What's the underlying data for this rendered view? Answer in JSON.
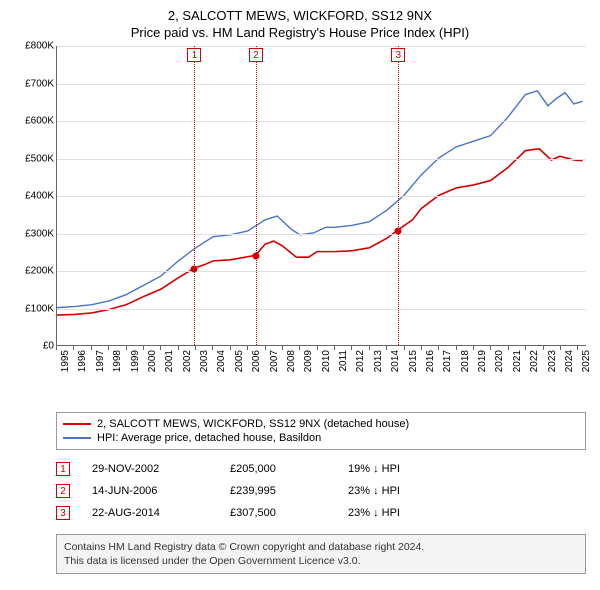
{
  "title_line1": "2, SALCOTT MEWS, WICKFORD, SS12 9NX",
  "title_line2": "Price paid vs. HM Land Registry's House Price Index (HPI)",
  "chart": {
    "type": "line",
    "background_color": "#ffffff",
    "grid_color": "#e0e0e0",
    "axis_color": "#666666",
    "x_min": 1995,
    "x_max": 2025.5,
    "x_ticks": [
      1995,
      1996,
      1997,
      1998,
      1999,
      2000,
      2001,
      2002,
      2003,
      2004,
      2005,
      2006,
      2007,
      2008,
      2009,
      2010,
      2011,
      2012,
      2013,
      2014,
      2015,
      2016,
      2017,
      2018,
      2019,
      2020,
      2021,
      2022,
      2023,
      2024,
      2025
    ],
    "y_min": 0,
    "y_max": 800000,
    "y_ticks": [
      0,
      100000,
      200000,
      300000,
      400000,
      500000,
      600000,
      700000,
      800000
    ],
    "y_tick_labels": [
      "£0",
      "£100K",
      "£200K",
      "£300K",
      "£400K",
      "£500K",
      "£600K",
      "£700K",
      "£800K"
    ],
    "y_tick_fontsize": 10,
    "x_tick_fontsize": 10,
    "x_tick_rotation": -90,
    "series": [
      {
        "name": "price_paid",
        "label": "2, SALCOTT MEWS, WICKFORD, SS12 9NX (detached house)",
        "color": "#d40000",
        "line_width": 1.6,
        "points": [
          [
            1995,
            80000
          ],
          [
            1996,
            82000
          ],
          [
            1997,
            86000
          ],
          [
            1998,
            95000
          ],
          [
            1999,
            108000
          ],
          [
            2000,
            130000
          ],
          [
            2001,
            150000
          ],
          [
            2002,
            180000
          ],
          [
            2002.9,
            205000
          ],
          [
            2003.5,
            215000
          ],
          [
            2004,
            225000
          ],
          [
            2005,
            228000
          ],
          [
            2006.45,
            239995
          ],
          [
            2007,
            270000
          ],
          [
            2007.5,
            278000
          ],
          [
            2008,
            265000
          ],
          [
            2008.8,
            235000
          ],
          [
            2009.5,
            235000
          ],
          [
            2010,
            250000
          ],
          [
            2011,
            250000
          ],
          [
            2012,
            252000
          ],
          [
            2013,
            260000
          ],
          [
            2014,
            285000
          ],
          [
            2014.64,
            307500
          ],
          [
            2015.5,
            335000
          ],
          [
            2016,
            365000
          ],
          [
            2017,
            400000
          ],
          [
            2018,
            420000
          ],
          [
            2019,
            428000
          ],
          [
            2020,
            440000
          ],
          [
            2021,
            475000
          ],
          [
            2022,
            520000
          ],
          [
            2022.8,
            525000
          ],
          [
            2023.5,
            495000
          ],
          [
            2024,
            505000
          ],
          [
            2024.8,
            495000
          ],
          [
            2025.3,
            493000
          ]
        ]
      },
      {
        "name": "hpi",
        "label": "HPI: Average price, detached house, Basildon",
        "color": "#4a74c9",
        "line_width": 1.4,
        "points": [
          [
            1995,
            100000
          ],
          [
            1996,
            103000
          ],
          [
            1997,
            108000
          ],
          [
            1998,
            118000
          ],
          [
            1999,
            135000
          ],
          [
            2000,
            160000
          ],
          [
            2001,
            185000
          ],
          [
            2002,
            225000
          ],
          [
            2003,
            260000
          ],
          [
            2004,
            290000
          ],
          [
            2005,
            295000
          ],
          [
            2006,
            305000
          ],
          [
            2007,
            335000
          ],
          [
            2007.7,
            345000
          ],
          [
            2008.5,
            310000
          ],
          [
            2009,
            295000
          ],
          [
            2009.8,
            300000
          ],
          [
            2010.5,
            315000
          ],
          [
            2011,
            315000
          ],
          [
            2012,
            320000
          ],
          [
            2013,
            330000
          ],
          [
            2014,
            360000
          ],
          [
            2015,
            400000
          ],
          [
            2016,
            455000
          ],
          [
            2017,
            500000
          ],
          [
            2018,
            530000
          ],
          [
            2019,
            545000
          ],
          [
            2020,
            560000
          ],
          [
            2021,
            610000
          ],
          [
            2022,
            670000
          ],
          [
            2022.7,
            680000
          ],
          [
            2023.3,
            640000
          ],
          [
            2023.8,
            660000
          ],
          [
            2024.3,
            675000
          ],
          [
            2024.8,
            645000
          ],
          [
            2025.3,
            652000
          ]
        ]
      }
    ],
    "markers": [
      {
        "n": "1",
        "x": 2002.91,
        "y": 205000,
        "color": "#d40000"
      },
      {
        "n": "2",
        "x": 2006.45,
        "y": 239995,
        "color": "#d40000"
      },
      {
        "n": "3",
        "x": 2014.64,
        "y": 307500,
        "color": "#d40000"
      }
    ]
  },
  "legend": {
    "border_color": "#999999",
    "fontsize": 11,
    "items": [
      {
        "color": "#d40000",
        "label": "2, SALCOTT MEWS, WICKFORD, SS12 9NX (detached house)"
      },
      {
        "color": "#4a74c9",
        "label": "HPI: Average price, detached house, Basildon"
      }
    ]
  },
  "transactions": [
    {
      "n": "1",
      "color": "#d40000",
      "date": "29-NOV-2002",
      "price": "£205,000",
      "delta": "19% ↓ HPI"
    },
    {
      "n": "2",
      "color": "#d40000",
      "date": "14-JUN-2006",
      "price": "£239,995",
      "delta": "23% ↓ HPI"
    },
    {
      "n": "3",
      "color": "#d40000",
      "date": "22-AUG-2014",
      "price": "£307,500",
      "delta": "23% ↓ HPI"
    }
  ],
  "footer": {
    "line1": "Contains HM Land Registry data © Crown copyright and database right 2024.",
    "line2": "This data is licensed under the Open Government Licence v3.0.",
    "background_color": "#f4f4f4",
    "border_color": "#999999"
  }
}
